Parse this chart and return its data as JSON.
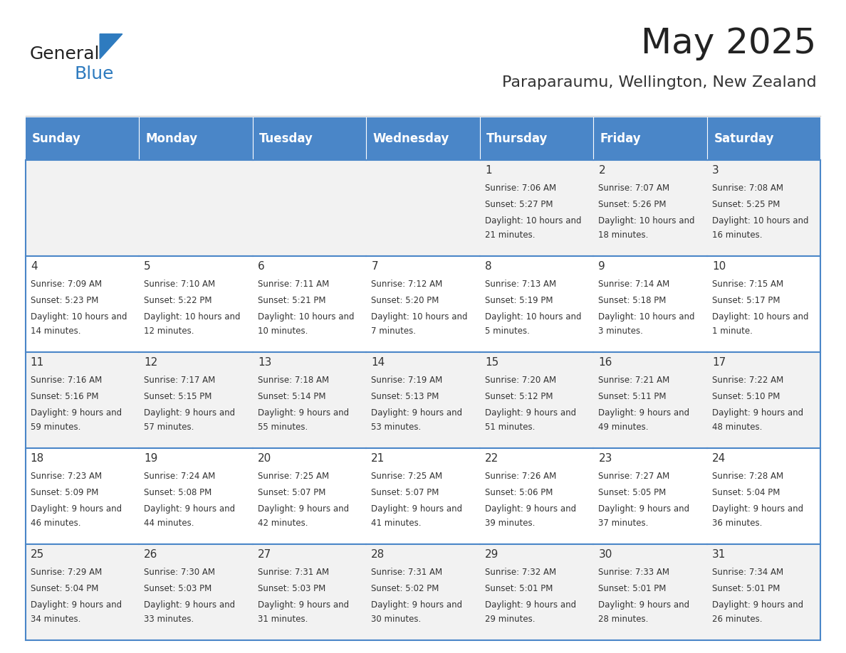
{
  "title": "May 2025",
  "subtitle": "Paraparaumu, Wellington, New Zealand",
  "days_of_week": [
    "Sunday",
    "Monday",
    "Tuesday",
    "Wednesday",
    "Thursday",
    "Friday",
    "Saturday"
  ],
  "header_bg": "#4a86c8",
  "header_text": "#ffffff",
  "cell_bg_light": "#f2f2f2",
  "cell_bg_white": "#ffffff",
  "cell_border": "#4a86c8",
  "day_num_color": "#333333",
  "cell_text_color": "#333333",
  "title_color": "#222222",
  "subtitle_color": "#333333",
  "logo_general_color": "#222222",
  "logo_blue_color": "#2e7bbf",
  "calendar": [
    [
      null,
      null,
      null,
      null,
      {
        "day": 1,
        "sunrise": "7:06 AM",
        "sunset": "5:27 PM",
        "daylight": "10 hours and 21 minutes."
      },
      {
        "day": 2,
        "sunrise": "7:07 AM",
        "sunset": "5:26 PM",
        "daylight": "10 hours and 18 minutes."
      },
      {
        "day": 3,
        "sunrise": "7:08 AM",
        "sunset": "5:25 PM",
        "daylight": "10 hours and 16 minutes."
      }
    ],
    [
      {
        "day": 4,
        "sunrise": "7:09 AM",
        "sunset": "5:23 PM",
        "daylight": "10 hours and 14 minutes."
      },
      {
        "day": 5,
        "sunrise": "7:10 AM",
        "sunset": "5:22 PM",
        "daylight": "10 hours and 12 minutes."
      },
      {
        "day": 6,
        "sunrise": "7:11 AM",
        "sunset": "5:21 PM",
        "daylight": "10 hours and 10 minutes."
      },
      {
        "day": 7,
        "sunrise": "7:12 AM",
        "sunset": "5:20 PM",
        "daylight": "10 hours and 7 minutes."
      },
      {
        "day": 8,
        "sunrise": "7:13 AM",
        "sunset": "5:19 PM",
        "daylight": "10 hours and 5 minutes."
      },
      {
        "day": 9,
        "sunrise": "7:14 AM",
        "sunset": "5:18 PM",
        "daylight": "10 hours and 3 minutes."
      },
      {
        "day": 10,
        "sunrise": "7:15 AM",
        "sunset": "5:17 PM",
        "daylight": "10 hours and 1 minute."
      }
    ],
    [
      {
        "day": 11,
        "sunrise": "7:16 AM",
        "sunset": "5:16 PM",
        "daylight": "9 hours and 59 minutes."
      },
      {
        "day": 12,
        "sunrise": "7:17 AM",
        "sunset": "5:15 PM",
        "daylight": "9 hours and 57 minutes."
      },
      {
        "day": 13,
        "sunrise": "7:18 AM",
        "sunset": "5:14 PM",
        "daylight": "9 hours and 55 minutes."
      },
      {
        "day": 14,
        "sunrise": "7:19 AM",
        "sunset": "5:13 PM",
        "daylight": "9 hours and 53 minutes."
      },
      {
        "day": 15,
        "sunrise": "7:20 AM",
        "sunset": "5:12 PM",
        "daylight": "9 hours and 51 minutes."
      },
      {
        "day": 16,
        "sunrise": "7:21 AM",
        "sunset": "5:11 PM",
        "daylight": "9 hours and 49 minutes."
      },
      {
        "day": 17,
        "sunrise": "7:22 AM",
        "sunset": "5:10 PM",
        "daylight": "9 hours and 48 minutes."
      }
    ],
    [
      {
        "day": 18,
        "sunrise": "7:23 AM",
        "sunset": "5:09 PM",
        "daylight": "9 hours and 46 minutes."
      },
      {
        "day": 19,
        "sunrise": "7:24 AM",
        "sunset": "5:08 PM",
        "daylight": "9 hours and 44 minutes."
      },
      {
        "day": 20,
        "sunrise": "7:25 AM",
        "sunset": "5:07 PM",
        "daylight": "9 hours and 42 minutes."
      },
      {
        "day": 21,
        "sunrise": "7:25 AM",
        "sunset": "5:07 PM",
        "daylight": "9 hours and 41 minutes."
      },
      {
        "day": 22,
        "sunrise": "7:26 AM",
        "sunset": "5:06 PM",
        "daylight": "9 hours and 39 minutes."
      },
      {
        "day": 23,
        "sunrise": "7:27 AM",
        "sunset": "5:05 PM",
        "daylight": "9 hours and 37 minutes."
      },
      {
        "day": 24,
        "sunrise": "7:28 AM",
        "sunset": "5:04 PM",
        "daylight": "9 hours and 36 minutes."
      }
    ],
    [
      {
        "day": 25,
        "sunrise": "7:29 AM",
        "sunset": "5:04 PM",
        "daylight": "9 hours and 34 minutes."
      },
      {
        "day": 26,
        "sunrise": "7:30 AM",
        "sunset": "5:03 PM",
        "daylight": "9 hours and 33 minutes."
      },
      {
        "day": 27,
        "sunrise": "7:31 AM",
        "sunset": "5:03 PM",
        "daylight": "9 hours and 31 minutes."
      },
      {
        "day": 28,
        "sunrise": "7:31 AM",
        "sunset": "5:02 PM",
        "daylight": "9 hours and 30 minutes."
      },
      {
        "day": 29,
        "sunrise": "7:32 AM",
        "sunset": "5:01 PM",
        "daylight": "9 hours and 29 minutes."
      },
      {
        "day": 30,
        "sunrise": "7:33 AM",
        "sunset": "5:01 PM",
        "daylight": "9 hours and 28 minutes."
      },
      {
        "day": 31,
        "sunrise": "7:34 AM",
        "sunset": "5:01 PM",
        "daylight": "9 hours and 26 minutes."
      }
    ]
  ]
}
